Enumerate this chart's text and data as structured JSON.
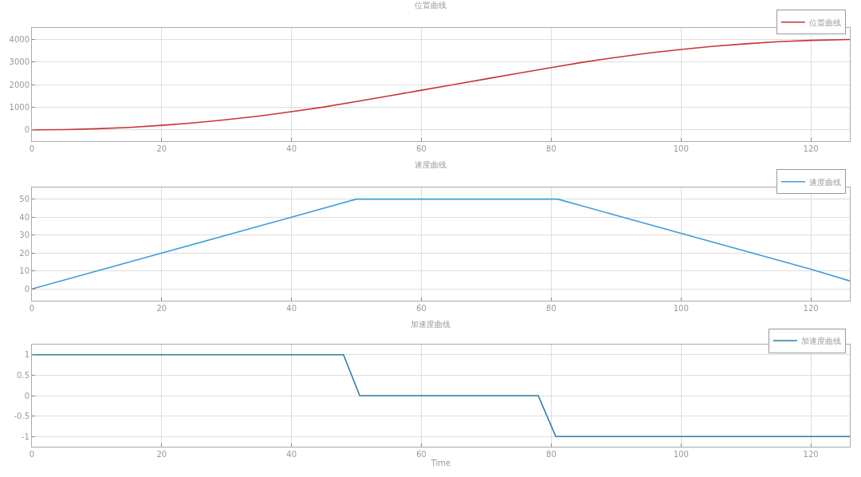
{
  "chart_data": [
    {
      "type": "line",
      "title": "位置曲线",
      "x": [
        0,
        5,
        10,
        15,
        20,
        25,
        30,
        35,
        40,
        45,
        50,
        55,
        60,
        65,
        70,
        75,
        80,
        85,
        90,
        95,
        100,
        105,
        110,
        115,
        120,
        126
      ],
      "series": [
        {
          "name": "位置曲线",
          "color": "#cc3333",
          "values": [
            0,
            10,
            50,
            110,
            200,
            310,
            450,
            610,
            800,
            1010,
            1250,
            1500,
            1750,
            2000,
            2250,
            2500,
            2750,
            2990,
            3200,
            3390,
            3550,
            3690,
            3800,
            3890,
            3950,
            3990
          ]
        }
      ],
      "xlim": [
        0,
        126
      ],
      "xticks": [
        0,
        20,
        40,
        60,
        80,
        100,
        120
      ],
      "ylim": [
        -500,
        4500
      ],
      "yticks": [
        0,
        1000,
        2000,
        3000,
        4000
      ],
      "grid": true,
      "legend": "top right",
      "line_style": "solid"
    },
    {
      "type": "line",
      "title": "速度曲线",
      "x": [
        0,
        10,
        20,
        30,
        40,
        50,
        81,
        90,
        100,
        110,
        120,
        126
      ],
      "series": [
        {
          "name": "速度曲线",
          "color": "#3a9fd6",
          "values": [
            0,
            10,
            20,
            30,
            40,
            50,
            50,
            41,
            31,
            21,
            11,
            4.5
          ]
        }
      ],
      "xlim": [
        0,
        126
      ],
      "xticks": [
        0,
        20,
        40,
        60,
        80,
        100,
        120
      ],
      "ylim": [
        -6.5,
        56.5
      ],
      "yticks": [
        0,
        10,
        20,
        30,
        40,
        50
      ],
      "grid": true,
      "legend": "top right",
      "line_style": "solid"
    },
    {
      "type": "line",
      "title": "加速度曲线",
      "xlabel": "Time",
      "x": [
        0,
        48,
        50.5,
        78,
        80.7,
        126
      ],
      "series": [
        {
          "name": "加速度曲线",
          "color": "#2b7fa3",
          "values": [
            1,
            1,
            0,
            0,
            -1,
            -1
          ]
        }
      ],
      "xlim": [
        0,
        126
      ],
      "xticks": [
        0,
        20,
        40,
        60,
        80,
        100,
        120
      ],
      "ylim": [
        -1.25,
        1.25
      ],
      "yticks": [
        -1,
        -0.5,
        0,
        0.5,
        1
      ],
      "grid": true,
      "legend": "top right",
      "line_style": "solid"
    }
  ]
}
